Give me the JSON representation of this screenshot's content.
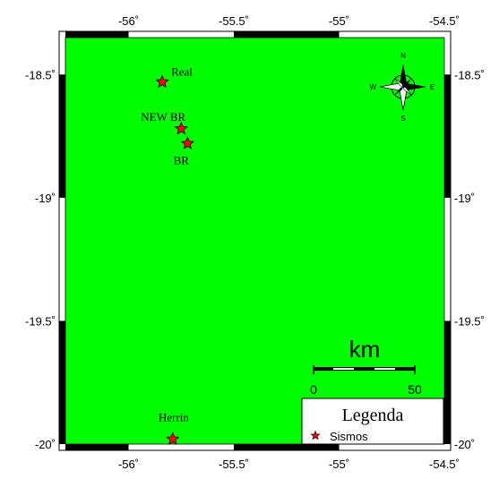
{
  "map": {
    "land_color": "#00ff00",
    "marker_color": "#ff0000",
    "lon_range": [
      -56.3,
      -54.5
    ],
    "lat_range": [
      -20.0,
      -18.35
    ],
    "lon_ticks": [
      {
        "value": -56.0,
        "label": "-56˚"
      },
      {
        "value": -55.5,
        "label": "-55.5˚"
      },
      {
        "value": -55.0,
        "label": "-55˚"
      },
      {
        "value": -54.5,
        "label": "-54.5˚"
      }
    ],
    "lat_ticks": [
      {
        "value": -18.5,
        "label": "-18.5˚"
      },
      {
        "value": -19.0,
        "label": "-19˚"
      },
      {
        "value": -19.5,
        "label": "-19.5˚"
      },
      {
        "value": -20.0,
        "label": "-20˚"
      }
    ],
    "frame_segments_deg": 0.5
  },
  "points": [
    {
      "name": "Real",
      "lon": -55.84,
      "lat": -18.53
    },
    {
      "name": "NEW BR",
      "lon": -55.75,
      "lat": -18.72
    },
    {
      "name": "BR",
      "lon": -55.72,
      "lat": -18.78
    },
    {
      "name": "Herrin",
      "lon": -55.79,
      "lat": -19.98
    }
  ],
  "compass": {
    "north": "N",
    "south": "S",
    "east": "E",
    "west": "W"
  },
  "scale_bar": {
    "unit": "km",
    "start_label": "0",
    "end_label": "50"
  },
  "legend": {
    "title": "Legenda",
    "items": [
      {
        "label": "Sismos",
        "symbol": "star-icon"
      }
    ]
  }
}
